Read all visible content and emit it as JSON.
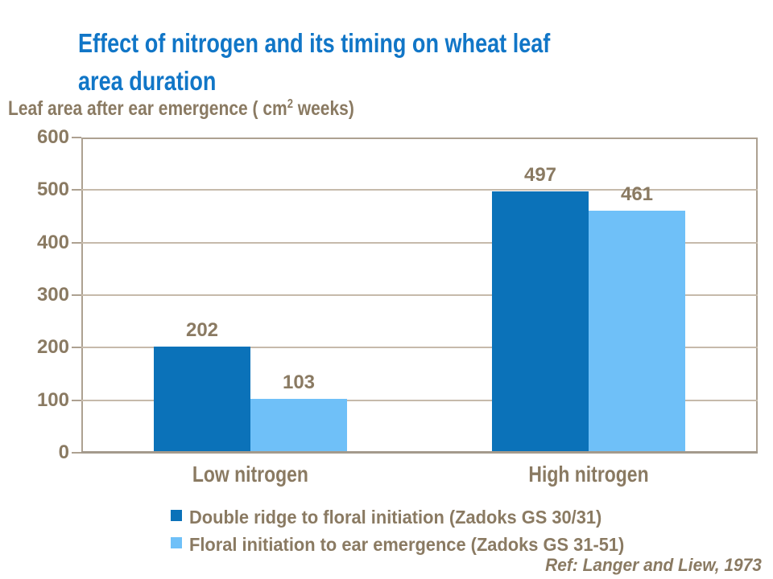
{
  "header": {
    "title_line1": "Effect of nitrogen and its timing on wheat leaf",
    "title_line2": "area duration",
    "title_color": "#1176C7"
  },
  "axis_title": {
    "prefix": "Leaf area after ear emergence ( cm",
    "sup": "2",
    "suffix": " weeks)"
  },
  "chart_data": {
    "type": "bar",
    "title": "Effect of nitrogen and its timing on wheat leaf area duration",
    "ylabel": "Leaf area after ear emergence ( cm2 weeks)",
    "xlabel": "",
    "categories": [
      "Low nitrogen",
      "High nitrogen"
    ],
    "series": [
      {
        "name": "Double ridge to floral initiation (Zadoks GS 30/31)",
        "color": "#0B72B9",
        "values": [
          202,
          497
        ]
      },
      {
        "name": "Floral initiation to ear emergence (Zadoks GS 31-51)",
        "color": "#6FC0F8",
        "values": [
          103,
          461
        ]
      }
    ],
    "data_labels": [
      [
        "202",
        "497"
      ],
      [
        "103",
        "461"
      ]
    ],
    "ylim": [
      0,
      600
    ],
    "yticks": [
      0,
      100,
      200,
      300,
      400,
      500,
      600
    ],
    "grid": true,
    "legend_position": "bottom",
    "grid_color": "#C6BAAB",
    "axis_color": "#ADA191",
    "baseline_color": "#A49A8C",
    "text_color": "#8A7A62"
  },
  "footer": {
    "ref": "Ref: Langer and Liew, 1973"
  }
}
